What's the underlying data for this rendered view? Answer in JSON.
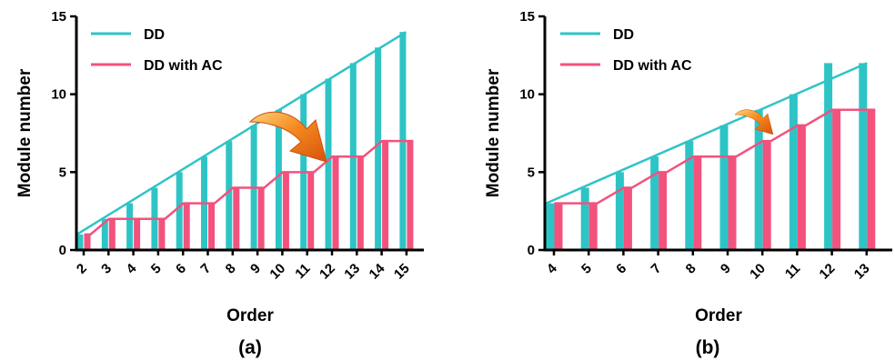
{
  "chart_data": [
    {
      "type": "bar",
      "panel_label": "(a)",
      "xlabel": "Order",
      "ylabel": "Module number",
      "ylim": [
        0,
        15
      ],
      "yticks": [
        0,
        5,
        10,
        15
      ],
      "categories": [
        "2",
        "3",
        "4",
        "5",
        "6",
        "7",
        "8",
        "9",
        "10",
        "11",
        "12",
        "13",
        "14",
        "15"
      ],
      "series": [
        {
          "name": "DD",
          "color": "#2EC4C6",
          "values": [
            1,
            2,
            3,
            4,
            5,
            6,
            7,
            8,
            9,
            10,
            11,
            12,
            13,
            14
          ],
          "trend_line": true
        },
        {
          "name": "DD with AC",
          "color": "#F2527D",
          "values": [
            1,
            2,
            2,
            2,
            3,
            3,
            4,
            4,
            5,
            5,
            6,
            6,
            7,
            7
          ],
          "trend_line": true
        }
      ],
      "legend": "top-left",
      "annotation": "orange-arrow-down-right"
    },
    {
      "type": "bar",
      "panel_label": "(b)",
      "xlabel": "Order",
      "ylabel": "Module number",
      "ylim": [
        0,
        15
      ],
      "yticks": [
        0,
        5,
        10,
        15
      ],
      "categories": [
        "4",
        "5",
        "6",
        "7",
        "8",
        "9",
        "10",
        "11",
        "12",
        "13"
      ],
      "series": [
        {
          "name": "DD",
          "color": "#2EC4C6",
          "values": [
            3,
            4,
            5,
            6,
            7,
            8,
            9,
            10,
            12,
            12
          ],
          "trend_line": true
        },
        {
          "name": "DD with AC",
          "color": "#F2527D",
          "values": [
            3,
            3,
            4,
            5,
            6,
            6,
            7,
            8,
            9,
            9
          ],
          "trend_line": true
        }
      ],
      "legend": "top-left",
      "annotation": "orange-arrow-down-right"
    }
  ]
}
